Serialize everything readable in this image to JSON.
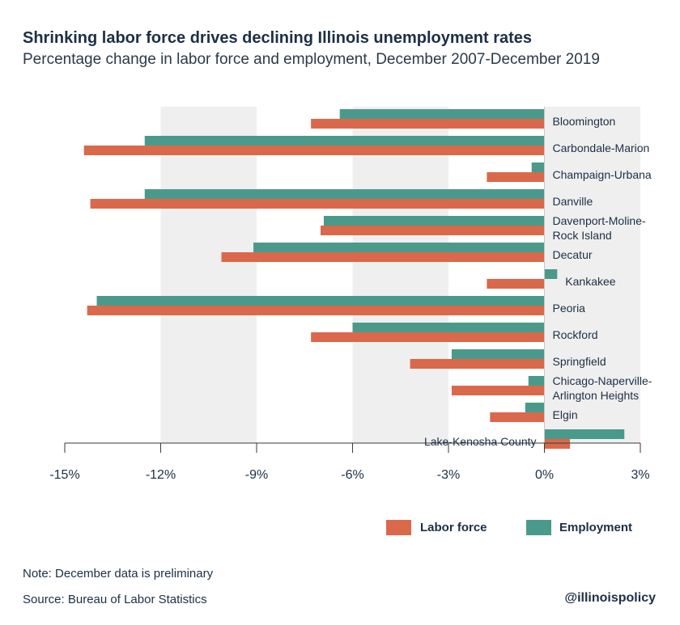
{
  "title": "Shrinking labor force drives declining Illinois unemployment rates",
  "subtitle": "Percentage change in labor force and employment, December 2007-December 2019",
  "note": "Note:  December data is preliminary",
  "source": "Source: Bureau of Labor Statistics",
  "brand": "@illinoispolicy",
  "colors": {
    "labor_force": "#d9694a",
    "employment": "#4a9a8c",
    "band": "#efefef",
    "axis": "#3a3a3a"
  },
  "chart_data": {
    "type": "bar",
    "orientation": "horizontal",
    "categories": [
      "Bloomington",
      "Carbondale-Marion",
      "Champaign-Urbana",
      "Danville",
      "Davenport-Moline-Rock Island",
      "Decatur",
      "Kankakee",
      "Peoria",
      "Rockford",
      "Springfield",
      "Chicago-Naperville-Arlington Heights",
      "Elgin",
      "Lake-Kenosha County"
    ],
    "category_lines": [
      [
        "Bloomington"
      ],
      [
        "Carbondale-Marion"
      ],
      [
        "Champaign-Urbana"
      ],
      [
        "Danville"
      ],
      [
        "Davenport-Moline-",
        "Rock Island"
      ],
      [
        "Decatur"
      ],
      [
        "Kankakee"
      ],
      [
        "Peoria"
      ],
      [
        "Rockford"
      ],
      [
        "Springfield"
      ],
      [
        "Chicago-Naperville-",
        "Arlington Heights"
      ],
      [
        "Elgin"
      ],
      [
        "Lake-Kenosha County"
      ]
    ],
    "series": [
      {
        "name": "Employment",
        "values": [
          -6.4,
          -12.5,
          -0.4,
          -12.5,
          -6.9,
          -9.1,
          0.4,
          -14.0,
          -6.0,
          -2.9,
          -0.5,
          -0.6,
          2.5
        ]
      },
      {
        "name": "Labor force",
        "values": [
          -7.3,
          -14.4,
          -1.8,
          -14.2,
          -7.0,
          -10.1,
          -1.8,
          -14.3,
          -7.3,
          -4.2,
          -2.9,
          -1.7,
          0.8
        ]
      }
    ],
    "xlim": [
      -15,
      3
    ],
    "ticks": [
      -15,
      -12,
      -9,
      -6,
      -3,
      0,
      3
    ],
    "tick_labels": [
      "-15%",
      "-12%",
      "-9%",
      "-6%",
      "-3%",
      "0%",
      "3%"
    ],
    "legend": [
      "Labor force",
      "Employment"
    ],
    "legend_position": "bottom-right",
    "grid": "alternating vertical bands"
  }
}
